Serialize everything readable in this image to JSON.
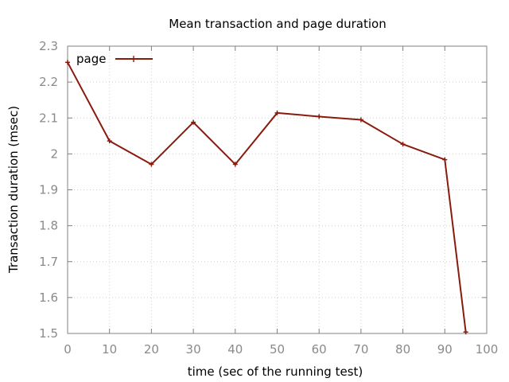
{
  "chart_data": {
    "type": "line",
    "title": "Mean transaction and page duration",
    "xlabel": "time (sec of the running test)",
    "ylabel": "Transaction duration (msec)",
    "xlim": [
      0,
      100
    ],
    "ylim": [
      1.5,
      2.3
    ],
    "x_ticks": [
      0,
      10,
      20,
      30,
      40,
      50,
      60,
      70,
      80,
      90,
      100
    ],
    "y_ticks": [
      1.5,
      1.6,
      1.7,
      1.8,
      1.9,
      2,
      2.1,
      2.2,
      2.3
    ],
    "grid": true,
    "legend_position": "top-left",
    "series": [
      {
        "name": "page",
        "color": "#8b1a0e",
        "x": [
          0,
          10,
          20,
          30,
          40,
          50,
          60,
          70,
          80,
          90,
          95
        ],
        "y": [
          2.255,
          2.036,
          1.971,
          2.088,
          1.971,
          2.114,
          2.104,
          2.095,
          2.027,
          1.984,
          1.504
        ]
      }
    ]
  }
}
